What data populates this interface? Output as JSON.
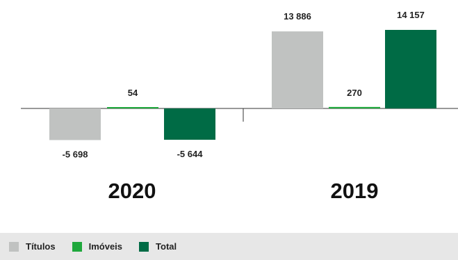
{
  "chart_data": {
    "type": "bar",
    "groups": [
      "2020",
      "2019"
    ],
    "series": [
      {
        "name": "Títulos",
        "color": "#c0c2c1",
        "values": [
          -5698,
          13886
        ]
      },
      {
        "name": "Imóveis",
        "color": "#1fa83c",
        "values": [
          54,
          270
        ]
      },
      {
        "name": "Total",
        "color": "#006b45",
        "values": [
          -5644,
          14157
        ]
      }
    ],
    "value_labels": [
      [
        "-5 698",
        "54",
        "-5 644"
      ],
      [
        "13 886",
        "270",
        "14 157"
      ]
    ],
    "legend_position": "bottom",
    "grid": false
  }
}
